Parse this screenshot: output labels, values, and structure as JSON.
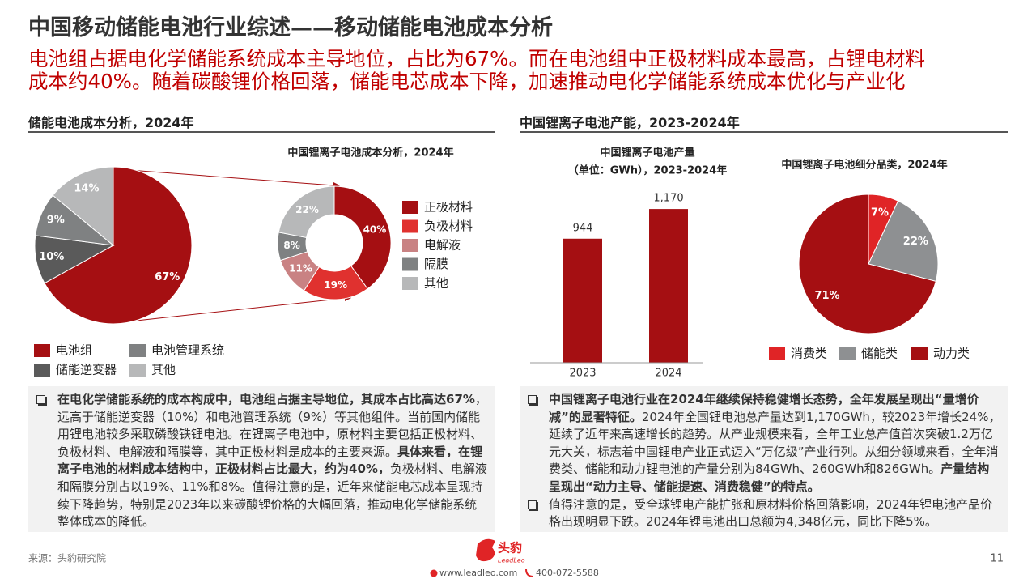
{
  "header": {
    "title": "中国移动储能电池行业综述——移动储能电池成本分析",
    "subtitle": [
      "电池组占据电化学储能系统成本主导地位，占比为67%。而在电池组中正极材料成本最高，占锂电材料",
      "成本约40%。随着碳酸锂价格回落，储能电芯成本下降，加速推动电化学储能系统成本优化与产业化"
    ]
  },
  "sections": [
    "储能电池成本分析，2024年",
    "中国锂离子电池产能，2023-2024年"
  ],
  "chart_data": [
    {
      "type": "pie",
      "categories": [
        "电池组",
        "储能逆变器",
        "电池管理系统",
        "其他"
      ],
      "values": [
        67,
        10,
        9,
        14
      ],
      "value_labels": [
        "67%",
        "10%",
        "9%",
        "14%"
      ],
      "colors": [
        "#a50f12",
        "#5a5a5a",
        "#7f8182",
        "#b7b8b9"
      ]
    },
    {
      "type": "donut",
      "title": "中国锂离子电池成本分析，2024年",
      "categories": [
        "正极材料",
        "负极材料",
        "电解液",
        "隔膜",
        "其他"
      ],
      "values": [
        40,
        19,
        11,
        8,
        22
      ],
      "value_labels": [
        "40%",
        "19%",
        "11%",
        "8%",
        "22%"
      ],
      "colors": [
        "#a50f12",
        "#e0312f",
        "#c98283",
        "#7f8182",
        "#b7b8b9"
      ]
    },
    {
      "type": "bar",
      "title": [
        "中国锂离子电池产量",
        "（单位：GWh），2023-2024年"
      ],
      "categories": [
        "2023",
        "2024"
      ],
      "values": [
        944,
        1170
      ],
      "value_labels": [
        "944",
        "1,170"
      ],
      "color": "#a50f12",
      "ylim": [
        0,
        1300
      ]
    },
    {
      "type": "pie",
      "title": "中国锂离子电池细分品类，2024年",
      "categories": [
        "消费类",
        "储能类",
        "动力类"
      ],
      "values": [
        7,
        22,
        71
      ],
      "value_labels": [
        "7%",
        "22%",
        "71%"
      ],
      "colors": [
        "#e02426",
        "#8e9092",
        "#a50f12"
      ]
    }
  ],
  "notes_left": [
    [
      {
        "text": "在电化学储能系统的成本构成中，电池组占据主导地位，其成本占比高达67%",
        "bold": true
      },
      {
        "text": "，远高于储能逆变器（10%）和电池管理系统（9%）等其他组件。当前国内储能用锂电池较多采取磷酸铁锂电池。在锂离子电池中，原材料主要包括正极材料、负极材料、电解液和隔膜等，其中正极材料是成本的主要来源。",
        "bold": false
      },
      {
        "text": "具体来看，在锂离子电池的材料成本结构中，正极材料占比最大，约为40%，",
        "bold": true
      },
      {
        "text": "负极材料、电解液和隔膜分别占以19%、11%和8%。值得注意的是，近年来储能电芯成本呈现持续下降趋势，特别是2023年以来碳酸锂价格的大幅回落，推动电化学储能系统整体成本的降低。",
        "bold": false
      }
    ]
  ],
  "notes_right": [
    [
      {
        "text": "中国锂离子电池行业在2024年继续保持稳健增长态势，全年发展呈现出“量增价减”的显著特征。",
        "bold": true
      },
      {
        "text": "2024年全国锂电池总产量达到1,170GWh，较2023年增长24%，延续了近年来高速增长的趋势。从产业规模来看，全年工业总产值首次突破1.2万亿元大关，标志着中国锂电产业正式迈入“万亿级”产业行列。从细分领域来看，全年消费类、储能和动力锂电池的产量分别为84GWh、260GWh和826GWh。",
        "bold": false
      },
      {
        "text": "产量结构呈现出“动力主导、储能提速、消费稳健”的特点。",
        "bold": true
      }
    ],
    [
      {
        "text": "值得注意的是，受全球锂电产能扩张和原材料价格回落影响，2024年锂电池产品价格出现明显下跌。2024年锂电池出口总额为4,348亿元，同比下降5%。",
        "bold": false
      }
    ]
  ],
  "footer": {
    "source": "来源：头豹研究院",
    "logo": "头豹",
    "logo_sub": "LeadLeo",
    "website": "www.leadleo.com",
    "phone": "400-072-5588",
    "page": "11"
  }
}
